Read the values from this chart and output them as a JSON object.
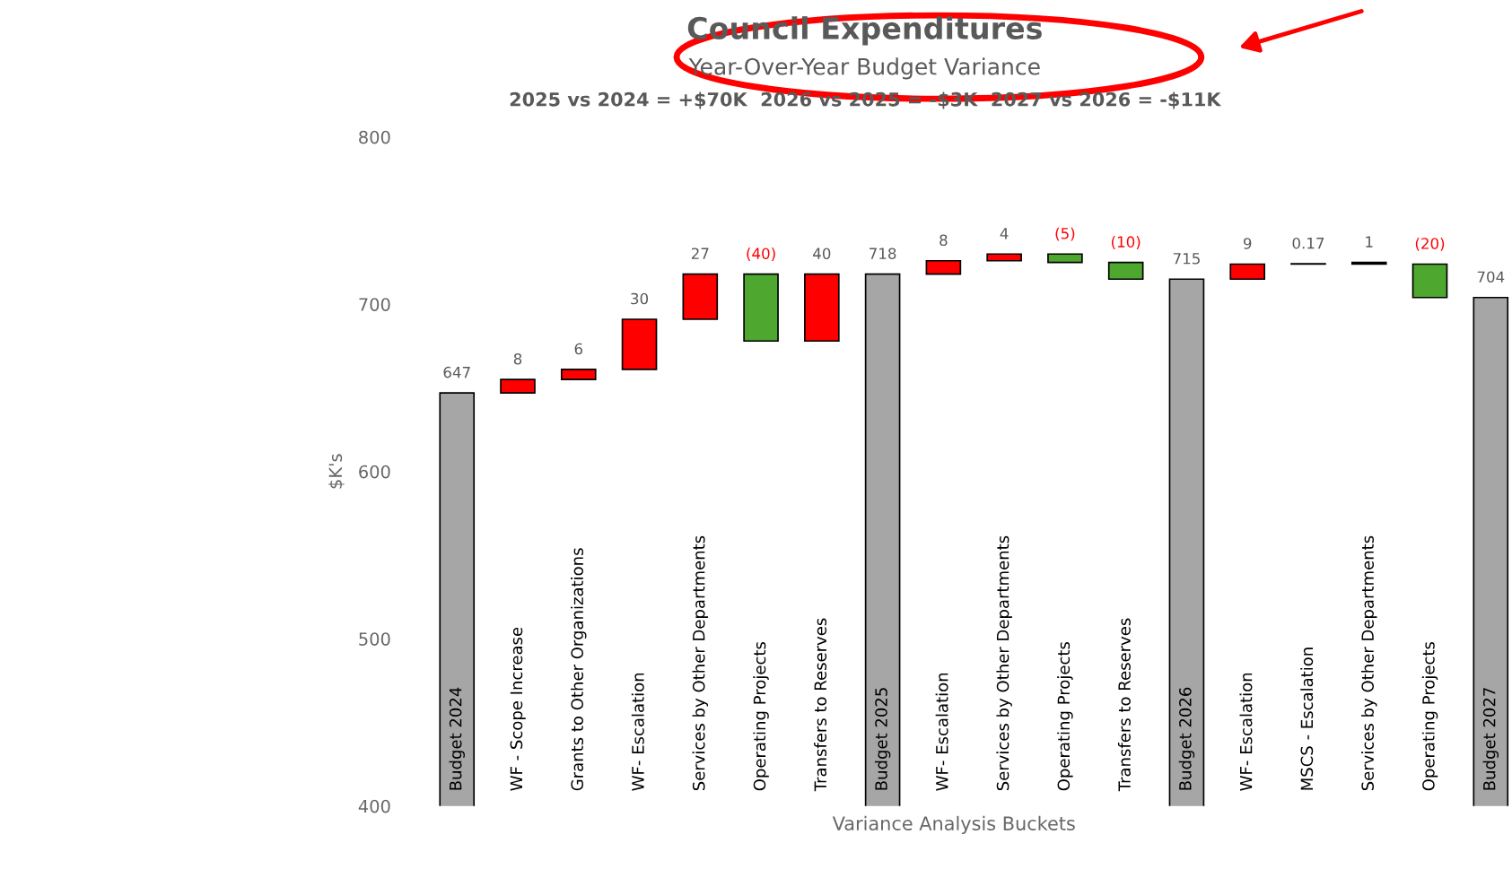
{
  "chart_data": {
    "type": "bar",
    "title": "Council Expenditures",
    "subtitle": "Year-Over-Year Budget Variance",
    "annotations": [
      "2025 vs 2024 = +$70K  2026 vs 2025 = -$3K  2027 vs 2026 = -$11K"
    ],
    "xlabel": "Variance Analysis Buckets",
    "ylabel": "$K's",
    "categories": [
      "Budget 2024",
      "WF - Scope Increase",
      "Grants to Other Organizations",
      "WF- Escalation",
      "Services by Other Departments",
      "Operating Projects",
      "Transfers to Reserves",
      "Budget 2025",
      "WF- Escalation",
      "Services by Other Departments",
      "Operating Projects",
      "Transfers to Reserves",
      "Budget 2026",
      "WF- Escalation",
      "MSCS - Escalation",
      "Services by Other Departments",
      "Operating Projects",
      "Budget 2027"
    ],
    "values": [
      647,
      8,
      6,
      30,
      27,
      -40,
      40,
      718,
      8,
      4,
      -5,
      -10,
      715,
      9,
      0.17,
      1,
      -20,
      704
    ],
    "base": [
      0,
      647,
      655,
      661,
      691,
      718,
      678,
      0,
      718,
      726,
      730,
      725,
      0,
      715,
      724,
      724,
      724,
      0
    ],
    "colors": [
      "#a6a6a6",
      "#ff0000",
      "#ff0000",
      "#ff0000",
      "#ff0000",
      "#4ea72e",
      "#ff0000",
      "#a6a6a6",
      "#ff0000",
      "#ff0000",
      "#4ea72e",
      "#4ea72e",
      "#a6a6a6",
      "#ff0000",
      "#000000",
      "#000000",
      "#4ea72e",
      "#a6a6a6"
    ],
    "value_labels": [
      "647",
      "8",
      "6",
      "30",
      "27",
      "(40)",
      "40",
      "718",
      "8",
      "4",
      "(5)",
      "(10)",
      "715",
      "9",
      "0.17",
      "1",
      "(20)",
      "704"
    ],
    "ylim": [
      400,
      800
    ],
    "yticks": [
      400,
      500,
      600,
      700,
      800
    ],
    "grid": false,
    "legend": false
  }
}
